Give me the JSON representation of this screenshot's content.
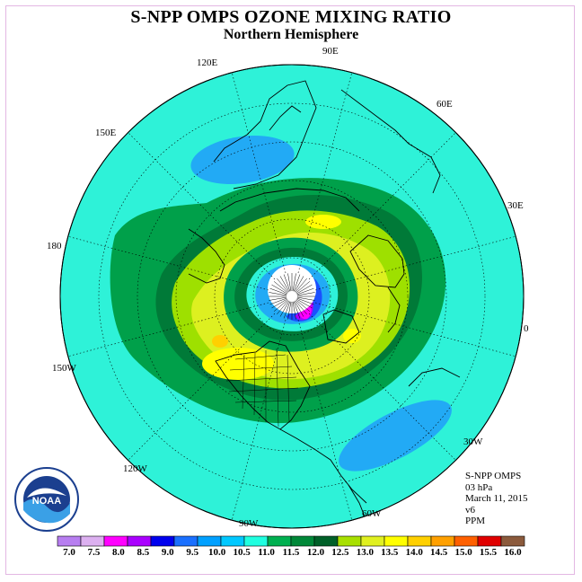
{
  "title": "S-NPP OMPS OZONE MIXING RATIO",
  "subtitle": "Northern Hemisphere",
  "longitude_labels": [
    "90E",
    "60E",
    "30E",
    "0",
    "30W",
    "60W",
    "90W",
    "120W",
    "150W",
    "180",
    "150E",
    "120E"
  ],
  "info": {
    "instrument": "S-NPP OMPS",
    "level": "03 hPa",
    "date": "March 11, 2015",
    "version": "v6",
    "units": "PPM"
  },
  "logo": {
    "text": "NOAA"
  },
  "colorbar": {
    "ticks": [
      "7.0",
      "7.5",
      "8.0",
      "8.5",
      "9.0",
      "9.5",
      "10.0",
      "10.5",
      "11.0",
      "11.5",
      "12.0",
      "12.5",
      "13.0",
      "13.5",
      "14.0",
      "14.5",
      "15.0",
      "15.5",
      "16.0"
    ],
    "colors": [
      "#b77ef0",
      "#dcb0f0",
      "#ff00ff",
      "#aa00ff",
      "#0000ee",
      "#1a70ff",
      "#00a0ff",
      "#00c8ff",
      "#20ffe0",
      "#00b050",
      "#008838",
      "#006028",
      "#a8e000",
      "#e0f020",
      "#ffff00",
      "#ffd000",
      "#ffa000",
      "#ff6000",
      "#e00000",
      "#8b5a3c"
    ]
  }
}
